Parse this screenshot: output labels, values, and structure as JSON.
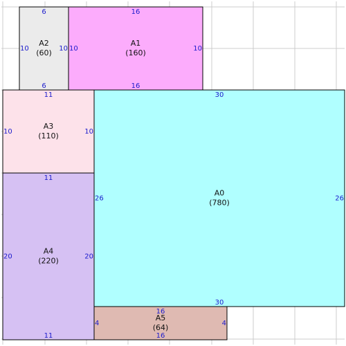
{
  "diagram": {
    "grid_columns": 8,
    "grid_rows": 8,
    "areas": [
      {
        "id": "A2",
        "label": "A2",
        "area_text": "(60)",
        "color": "#ebebeb",
        "top": "6",
        "bottom": "6",
        "left": "10",
        "right": "10"
      },
      {
        "id": "A1",
        "label": "A1",
        "area_text": "(160)",
        "color": "#fcacfc",
        "top": "16",
        "bottom": "16",
        "left": "10",
        "right": "10"
      },
      {
        "id": "A3",
        "label": "A3",
        "area_text": "(110)",
        "color": "#fde2ea",
        "top": "11",
        "bottom": "",
        "left": "10",
        "right": "10"
      },
      {
        "id": "A0",
        "label": "A0",
        "area_text": "(780)",
        "color": "#b0ffff",
        "top": "30",
        "bottom": "30",
        "left": "26",
        "right": "26"
      },
      {
        "id": "A4",
        "label": "A4",
        "area_text": "(220)",
        "color": "#d6c1f3",
        "top": "11",
        "bottom": "11",
        "left": "20",
        "right": "20"
      },
      {
        "id": "A5",
        "label": "A5",
        "area_text": "(64)",
        "color": "#dfbab2",
        "top": "16",
        "bottom": "16",
        "left": "4",
        "right": "4"
      }
    ]
  }
}
